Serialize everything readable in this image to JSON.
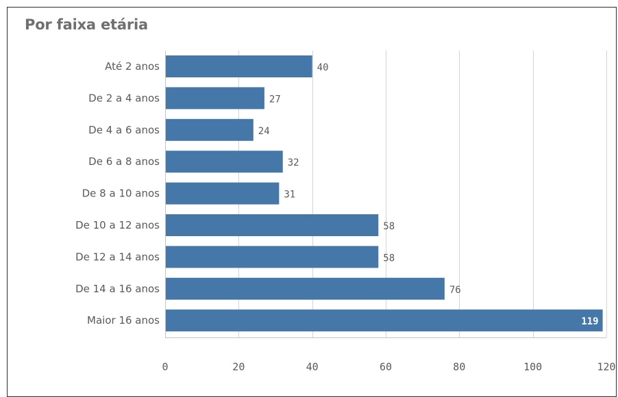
{
  "title": "Por faixa etária",
  "colors": {
    "bar": "#4577a9",
    "grid": "#d4d4d4",
    "axis": "#c4c4c4",
    "text": "#595959",
    "title": "#6f6f6f"
  },
  "chart_data": {
    "type": "bar",
    "orientation": "horizontal",
    "title": "Por faixa etária",
    "xlabel": "",
    "ylabel": "",
    "categories": [
      "Até 2 anos",
      "De 2 a 4 anos",
      "De 4 a 6 anos",
      "De 6 a 8 anos",
      "De 8 a 10 anos",
      "De 10 a 12 anos",
      "De 12 a 14 anos",
      "De 14 a 16 anos",
      "Maior 16 anos"
    ],
    "values": [
      40,
      27,
      24,
      32,
      31,
      58,
      58,
      76,
      119
    ],
    "value_labels": [
      "40",
      "27",
      "24",
      "32",
      "31",
      "58",
      "58",
      "76",
      "119"
    ],
    "xlim": [
      0,
      120
    ],
    "xticks": [
      0,
      20,
      40,
      60,
      80,
      100,
      120
    ],
    "xtick_labels": [
      "0",
      "20",
      "40",
      "60",
      "80",
      "100",
      "120"
    ],
    "grid": true,
    "legend": "none"
  }
}
